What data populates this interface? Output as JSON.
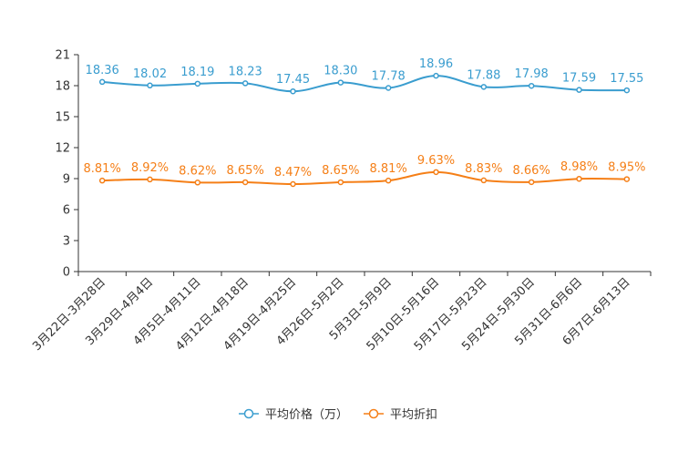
{
  "chart_data": {
    "type": "line",
    "title": "",
    "xlabel": "",
    "ylabel": "",
    "ylim": [
      0,
      21
    ],
    "yticks": [
      0,
      3,
      6,
      9,
      12,
      15,
      18,
      21
    ],
    "grid": false,
    "legend_position": "bottom-center",
    "categories": [
      "3月22日-3月28日",
      "3月29日-4月4日",
      "4月5日-4月11日",
      "4月12日-4月18日",
      "4月19日-4月25日",
      "4月26日-5月2日",
      "5月3日-5月9日",
      "5月10日-5月16日",
      "5月17日-5月23日",
      "5月24日-5月30日",
      "5月31日-6月6日",
      "6月7日-6月13日"
    ],
    "series": [
      {
        "name": "平均价格（万）",
        "color": "#3a9dcf",
        "values": [
          18.36,
          18.02,
          18.19,
          18.23,
          17.45,
          18.3,
          17.78,
          18.96,
          17.88,
          17.98,
          17.59,
          17.55
        ],
        "labels": [
          "18.36",
          "18.02",
          "18.19",
          "18.23",
          "17.45",
          "18.30",
          "17.78",
          "18.96",
          "17.88",
          "17.98",
          "17.59",
          "17.55"
        ]
      },
      {
        "name": "平均折扣",
        "color": "#f57f17",
        "values": [
          8.81,
          8.92,
          8.62,
          8.65,
          8.47,
          8.65,
          8.81,
          9.63,
          8.83,
          8.66,
          8.98,
          8.95
        ],
        "labels": [
          "8.81%",
          "8.92%",
          "8.62%",
          "8.65%",
          "8.47%",
          "8.65%",
          "8.81%",
          "9.63%",
          "8.83%",
          "8.66%",
          "8.98%",
          "8.95%"
        ]
      }
    ]
  }
}
